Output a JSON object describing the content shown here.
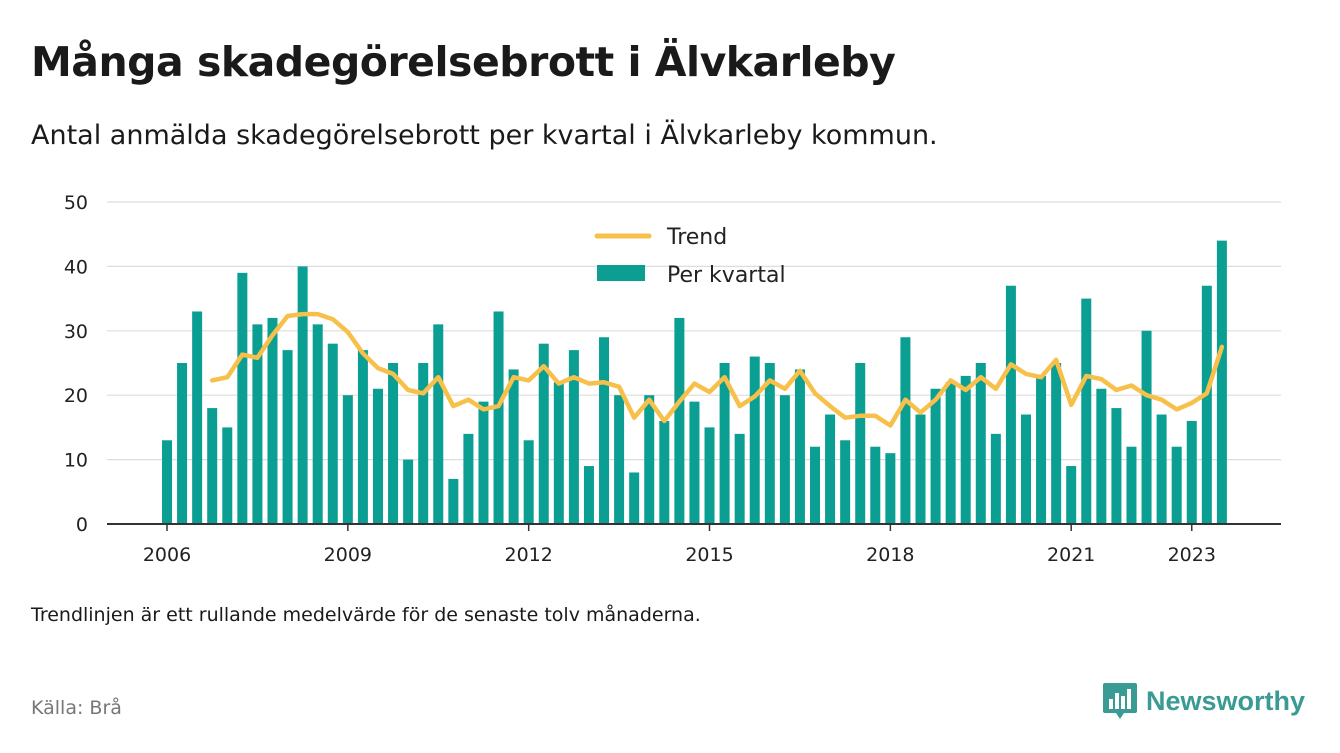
{
  "title": "Många skadegörelsebrott i Älvkarleby",
  "subtitle": "Antal anmälda skadegörelsebrott per kvartal i Älvkarleby kommun.",
  "note": "Trendlinjen är ett rullande medelvärde för de senaste tolv månaderna.",
  "source": "Källa: Brå",
  "brand": {
    "name": "Newsworthy",
    "icon": "newsworthy-bar-chart-icon"
  },
  "colors": {
    "bars": "#0b9e93",
    "trend": "#f7c04a",
    "grid": "#dddddd",
    "axis": "#333333",
    "brand": "#3a9a94"
  },
  "chart_data": {
    "type": "bar",
    "x_start": "2006 Q1",
    "xticks": [
      {
        "label": "2006",
        "year": 2006
      },
      {
        "label": "2009",
        "year": 2009
      },
      {
        "label": "2012",
        "year": 2012
      },
      {
        "label": "2015",
        "year": 2015
      },
      {
        "label": "2018",
        "year": 2018
      },
      {
        "label": "2021",
        "year": 2021
      },
      {
        "label": "2023",
        "year": 2023
      }
    ],
    "yticks": [
      "0",
      "10",
      "20",
      "30",
      "40",
      "50"
    ],
    "ylim": [
      0,
      50
    ],
    "grid": true,
    "legend_position": "top-center",
    "series": [
      {
        "name": "Per kvartal",
        "type": "bar",
        "values": [
          13,
          25,
          33,
          18,
          15,
          39,
          31,
          32,
          27,
          40,
          31,
          28,
          20,
          27,
          21,
          25,
          10,
          25,
          31,
          7,
          14,
          19,
          33,
          24,
          13,
          28,
          22,
          27,
          9,
          29,
          20,
          8,
          20,
          16,
          32,
          19,
          15,
          25,
          14,
          26,
          25,
          20,
          24,
          12,
          17,
          13,
          25,
          12,
          11,
          29,
          17,
          21,
          22,
          23,
          25,
          14,
          37,
          17,
          23,
          25,
          9,
          35,
          21,
          18,
          12,
          30,
          17,
          12,
          16,
          37,
          44
        ]
      },
      {
        "name": "Trend",
        "type": "line",
        "values": [
          null,
          null,
          null,
          22.3,
          22.8,
          26.3,
          25.8,
          29.3,
          32.3,
          32.6,
          32.6,
          31.8,
          29.8,
          26.5,
          24.2,
          23.3,
          20.8,
          20.3,
          22.8,
          18.3,
          19.3,
          17.8,
          18.3,
          22.8,
          22.3,
          24.5,
          21.8,
          22.8,
          21.8,
          22,
          21.3,
          16.5,
          19.3,
          16,
          19,
          21.8,
          20.5,
          22.8,
          18.3,
          19.8,
          22.3,
          21,
          23.8,
          20.3,
          18.3,
          16.5,
          16.8,
          16.8,
          15.3,
          19.3,
          17.3,
          19.3,
          22.3,
          20.8,
          22.8,
          21,
          24.8,
          23.3,
          22.8,
          25.5,
          18.5,
          23,
          22.5,
          20.8,
          21.5,
          20,
          19.3,
          17.8,
          18.8,
          20.3,
          27.5
        ]
      }
    ]
  }
}
